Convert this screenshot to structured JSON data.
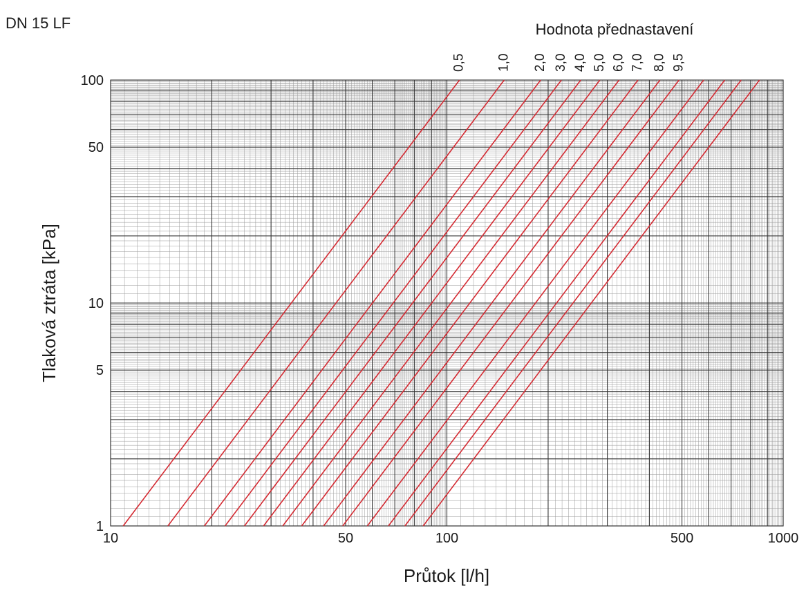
{
  "chart_data": {
    "type": "line",
    "title": "DN 15 LF",
    "legend_title": "Hodnota přednastavení",
    "xlabel": "Průtok  [l/h]",
    "ylabel": "Tlaková ztráta  [kPa]",
    "xscale": "log",
    "yscale": "log",
    "xlim": [
      10,
      1000
    ],
    "ylim": [
      1,
      100
    ],
    "grid": true,
    "x_tick_labels": [
      "10",
      "50",
      "100",
      "500",
      "1000"
    ],
    "y_tick_labels": [
      "1",
      "5",
      "10",
      "50",
      "100"
    ],
    "line_color": "#d42b33",
    "series": [
      {
        "name": "0,5",
        "points": [
          [
            10.9,
            1
          ],
          [
            109,
            100
          ]
        ]
      },
      {
        "name": "1,0",
        "points": [
          [
            14.8,
            1
          ],
          [
            148,
            100
          ]
        ]
      },
      {
        "name": "2,0",
        "points": [
          [
            19,
            1
          ],
          [
            190,
            100
          ]
        ]
      },
      {
        "name": "3,0",
        "points": [
          [
            21.9,
            1
          ],
          [
            219,
            100
          ]
        ]
      },
      {
        "name": "4,0",
        "points": [
          [
            25,
            1
          ],
          [
            250,
            100
          ]
        ]
      },
      {
        "name": "5,0",
        "points": [
          [
            28.5,
            1
          ],
          [
            285,
            100
          ]
        ]
      },
      {
        "name": "6,0",
        "points": [
          [
            32.5,
            1
          ],
          [
            325,
            100
          ]
        ]
      },
      {
        "name": "7,0",
        "points": [
          [
            37,
            1
          ],
          [
            370,
            100
          ]
        ]
      },
      {
        "name": "8,0",
        "points": [
          [
            43,
            1
          ],
          [
            430,
            100
          ]
        ]
      },
      {
        "name": "9,5",
        "points": [
          [
            49,
            1
          ],
          [
            490,
            100
          ]
        ]
      },
      {
        "name": "",
        "points": [
          [
            58,
            1
          ],
          [
            580,
            100
          ]
        ]
      },
      {
        "name": "",
        "points": [
          [
            67,
            1
          ],
          [
            670,
            100
          ]
        ]
      },
      {
        "name": "",
        "points": [
          [
            75,
            1
          ],
          [
            750,
            100
          ]
        ]
      },
      {
        "name": "",
        "points": [
          [
            85,
            1
          ],
          [
            850,
            100
          ]
        ]
      }
    ]
  }
}
